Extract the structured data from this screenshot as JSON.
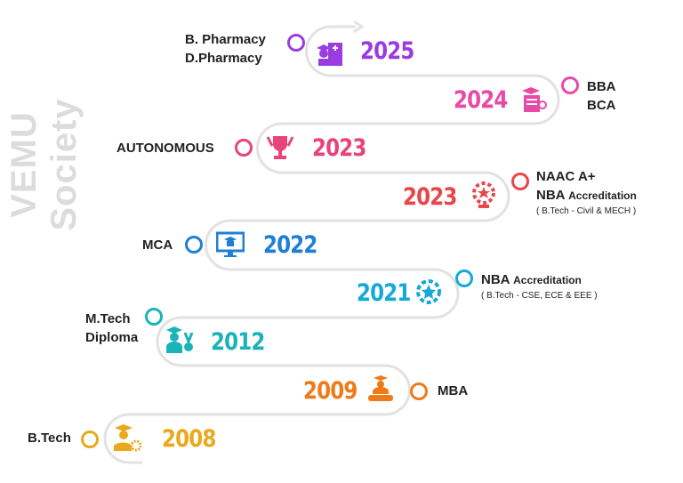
{
  "watermark": "VEMU Society",
  "milestones": [
    {
      "year": "2025",
      "lines": [
        "B. Pharmacy",
        "D.Pharmacy"
      ],
      "color": "#9b3ce0",
      "icon": "pharmacy-building-icon"
    },
    {
      "year": "2024",
      "lines": [
        "BBA",
        "BCA"
      ],
      "color": "#e84aa6",
      "icon": "certificate-icon"
    },
    {
      "year": "2023",
      "lines": [
        "AUTONOMOUS"
      ],
      "color": "#e8447a",
      "icon": "trophy-icon"
    },
    {
      "year": "2023",
      "lines": [
        "NAAC A+",
        "NBA",
        "Accreditation",
        "( B.Tech - Civil & MECH )"
      ],
      "color": "#e8474a",
      "icon": "award-laurel-icon"
    },
    {
      "year": "2022",
      "lines": [
        "MCA"
      ],
      "color": "#1f7fd6",
      "icon": "computer-graduation-icon"
    },
    {
      "year": "2021",
      "lines": [
        "NBA",
        "Accreditation",
        "( B.Tech - CSE, ECE & EEE )"
      ],
      "color": "#16a8d8",
      "icon": "star-laurel-icon"
    },
    {
      "year": "2012",
      "lines": [
        "M.Tech",
        "Diploma"
      ],
      "color": "#1ab3b8",
      "icon": "graduate-medal-icon"
    },
    {
      "year": "2009",
      "lines": [
        "MBA"
      ],
      "color": "#f07a1a",
      "icon": "graduate-scroll-icon"
    },
    {
      "year": "2008",
      "lines": [
        "B.Tech"
      ],
      "color": "#eaa91c",
      "icon": "graduate-gear-icon"
    }
  ]
}
